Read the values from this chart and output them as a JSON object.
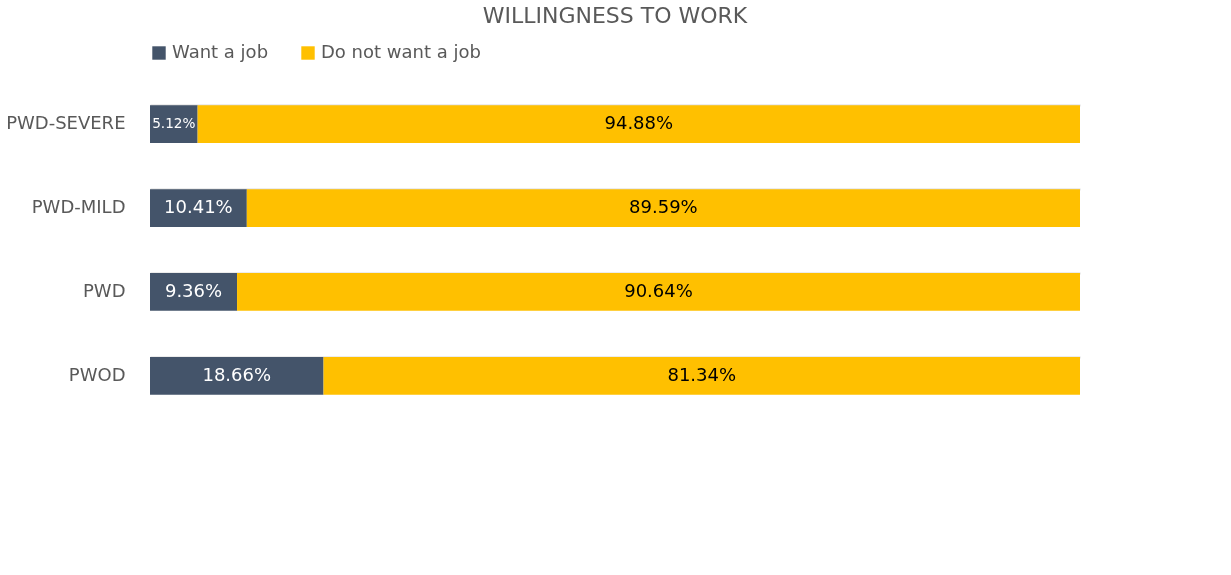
{
  "chart_data": {
    "type": "bar",
    "orientation": "horizontal",
    "stacked": true,
    "title": "WILLINGNESS TO WORK",
    "categories": [
      "PWD-SEVERE",
      "PWD-MILD",
      "PWD",
      "PWOD"
    ],
    "series": [
      {
        "name": "Want a job",
        "color": "#44546a",
        "values": [
          5.12,
          10.41,
          9.36,
          18.66
        ],
        "value_labels": [
          "5.12%",
          "10.41%",
          "9.36%",
          "18.66%"
        ]
      },
      {
        "name": "Do not want a job",
        "color": "#ffc000",
        "values": [
          94.88,
          89.59,
          90.64,
          81.34
        ],
        "value_labels": [
          "94.88%",
          "89.59%",
          "90.64%",
          "81.34%"
        ]
      }
    ],
    "legend": "top",
    "grid": "y"
  }
}
